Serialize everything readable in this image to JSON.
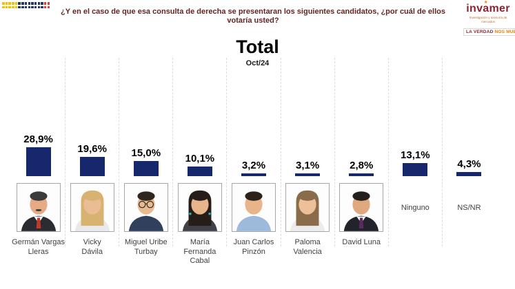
{
  "header": {
    "question": "¿Y en el caso de que esa consulta de derecha se presentaran los siguientes candidatos, ¿por cuál de ellos votaría usted?",
    "logo": {
      "name_pre": "inv",
      "name_a": "a",
      "name_post": "mer",
      "star": "*",
      "subtitle": "Investigación y asesoría de mercados",
      "tagline_left": "LA VERDAD",
      "tagline_right": "NOS MUEVE",
      "brand_color": "#8B2332",
      "accent_color": "#F07D00"
    },
    "flag_dots": {
      "colors": {
        "Y": "#F2C200",
        "B": "#1F3864",
        "R": "#E43D30"
      },
      "pattern": [
        "Y",
        "Y",
        "Y",
        "Y",
        "Y",
        "B",
        "B",
        "B",
        "B",
        "B",
        "B",
        "B",
        "B",
        "R",
        "R"
      ],
      "rows": 2
    }
  },
  "chart_data": {
    "type": "bar",
    "title": "Total",
    "subtitle": "Oct/24",
    "bar_color": "#17276B",
    "axis": "none",
    "grid": "dashed column separators",
    "legend": "none",
    "ylim": [
      0,
      30
    ],
    "value_suffix": "%",
    "categories": [
      "Germán Vargas Lleras",
      "Vicky Dávila",
      "Miguel Uribe Turbay",
      "María Fernanda Cabal",
      "Juan Carlos Pinzón",
      "Paloma Valencia",
      "David Luna",
      "Ninguno",
      "NS/NR"
    ],
    "values": [
      28.9,
      19.6,
      15.0,
      10.1,
      3.2,
      3.1,
      2.8,
      13.1,
      4.3
    ],
    "value_labels": [
      "28,9%",
      "19,6%",
      "15,0%",
      "10,1%",
      "3,2%",
      "3,1%",
      "2,8%",
      "13,1%",
      "4,3%"
    ],
    "columns": [
      {
        "category": "Germán Vargas Lleras",
        "value": 28.9,
        "label": "28,9%",
        "name_lines": [
          "Germán Vargas",
          "Lleras"
        ],
        "portrait": {
          "hair_style": "short",
          "hair": "#3b3b3b",
          "skin": "#e6ab84",
          "shirt": "#2b2b33",
          "tie": "#c0392b",
          "mustache": true
        }
      },
      {
        "category": "Vicky Dávila",
        "value": 19.6,
        "label": "19,6%",
        "name_lines": [
          "Vicky",
          "Dávila"
        ],
        "portrait": {
          "hair_style": "long",
          "hair": "#d8b270",
          "skin": "#ecbd95",
          "shirt": "#e9e9ec"
        }
      },
      {
        "category": "Miguel Uribe Turbay",
        "value": 15.0,
        "label": "15,0%",
        "name_lines": [
          "Miguel Uribe",
          "Turbay"
        ],
        "portrait": {
          "hair_style": "short",
          "hair": "#2e2620",
          "skin": "#e9b98f",
          "shirt": "#31405c",
          "glasses": true
        }
      },
      {
        "category": "María Fernanda Cabal",
        "value": 10.1,
        "label": "10,1%",
        "name_lines": [
          "María Fernanda",
          "Cabal"
        ],
        "portrait": {
          "hair_style": "long",
          "hair": "#261d18",
          "skin": "#e7b48c",
          "shirt": "#41414a",
          "earrings": true
        }
      },
      {
        "category": "Juan Carlos Pinzón",
        "value": 3.2,
        "label": "3,2%",
        "name_lines": [
          "Juan Carlos",
          "Pinzón"
        ],
        "portrait": {
          "hair_style": "short",
          "hair": "#2c2218",
          "skin": "#e8b58b",
          "shirt": "#9db9dc"
        }
      },
      {
        "category": "Paloma Valencia",
        "value": 3.1,
        "label": "3,1%",
        "name_lines": [
          "Paloma",
          "Valencia"
        ],
        "portrait": {
          "hair_style": "long",
          "hair": "#8a6b4a",
          "skin": "#eec09a",
          "shirt": "#ececec"
        }
      },
      {
        "category": "David Luna",
        "value": 2.8,
        "label": "2,8%",
        "name_lines": [
          "David Luna"
        ],
        "portrait": {
          "hair_style": "short",
          "hair": "#241f1c",
          "skin": "#dfa87e",
          "shirt": "#23232b",
          "tie": "#5b2a5e"
        }
      },
      {
        "category": "Ninguno",
        "value": 13.1,
        "label": "13,1%",
        "mid_label": "Ninguno"
      },
      {
        "category": "NS/NR",
        "value": 4.3,
        "label": "4,3%",
        "mid_label": "NS/NR"
      }
    ]
  }
}
